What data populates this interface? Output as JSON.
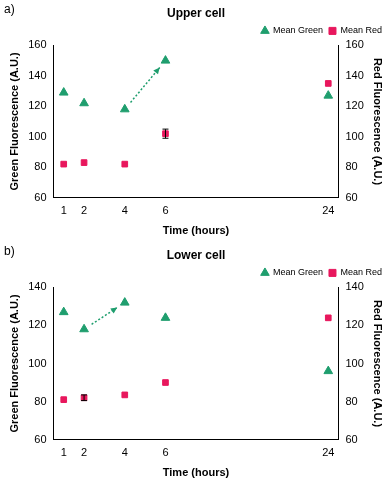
{
  "chart_data": [
    {
      "type": "scatter",
      "panel_label": "a)",
      "title": "Upper cell",
      "x_label": "Time (hours)",
      "y_label": "Green Fluorescence (A.U.)",
      "y2_label": "Red Fluorescence (A.U.)",
      "categories": [
        "1",
        "2",
        null,
        "4",
        null,
        "6",
        null,
        null,
        null,
        null,
        null,
        null,
        null,
        "24"
      ],
      "series": [
        {
          "name": "Mean Green",
          "color": "#1f9e6e",
          "marker": "triangle",
          "values": [
            129,
            122,
            null,
            118,
            null,
            150,
            null,
            null,
            null,
            null,
            null,
            null,
            null,
            127
          ]
        },
        {
          "name": "Mean Red",
          "color": "#e8175d",
          "marker": "square",
          "axis": "y2",
          "values": [
            82,
            83,
            null,
            82,
            null,
            102,
            null,
            null,
            null,
            null,
            null,
            null,
            null,
            135
          ],
          "errors": [
            null,
            null,
            null,
            null,
            null,
            3,
            null,
            null,
            null,
            null,
            null,
            null,
            null,
            null
          ]
        }
      ],
      "arrows": [
        {
          "from": "4",
          "to": "6"
        }
      ],
      "ylim": [
        60,
        160
      ],
      "yticks": [
        60,
        80,
        100,
        120,
        140,
        160
      ],
      "y2lim": [
        60,
        160
      ],
      "y2ticks": [
        60,
        80,
        100,
        120,
        140,
        160
      ],
      "legend": "top-right",
      "grid": false
    },
    {
      "type": "scatter",
      "panel_label": "b)",
      "title": "Lower cell",
      "x_label": "Time (hours)",
      "y_label": "Green Fluorescence (A.U.)",
      "y2_label": "Red Fluorescence (A.U.)",
      "categories": [
        "1",
        "2",
        null,
        "4",
        null,
        "6",
        null,
        null,
        null,
        null,
        null,
        null,
        null,
        "24"
      ],
      "series": [
        {
          "name": "Mean Green",
          "color": "#1f9e6e",
          "marker": "triangle",
          "values": [
            127,
            118,
            null,
            132,
            null,
            124,
            null,
            null,
            null,
            null,
            null,
            null,
            null,
            96
          ]
        },
        {
          "name": "Mean Red",
          "color": "#e8175d",
          "marker": "square",
          "axis": "y2",
          "values": [
            81,
            82,
            null,
            83.5,
            null,
            90,
            null,
            null,
            null,
            null,
            null,
            null,
            null,
            124
          ],
          "errors": [
            null,
            1.5,
            null,
            null,
            null,
            null,
            null,
            null,
            null,
            null,
            null,
            null,
            null,
            null
          ]
        }
      ],
      "arrows": [
        {
          "from": "2",
          "to": "4"
        }
      ],
      "ylim": [
        60,
        140
      ],
      "yticks": [
        60,
        80,
        100,
        120,
        140
      ],
      "y2lim": [
        60,
        140
      ],
      "y2ticks": [
        60,
        80,
        100,
        120,
        140
      ],
      "legend": "top-right",
      "grid": false
    }
  ]
}
